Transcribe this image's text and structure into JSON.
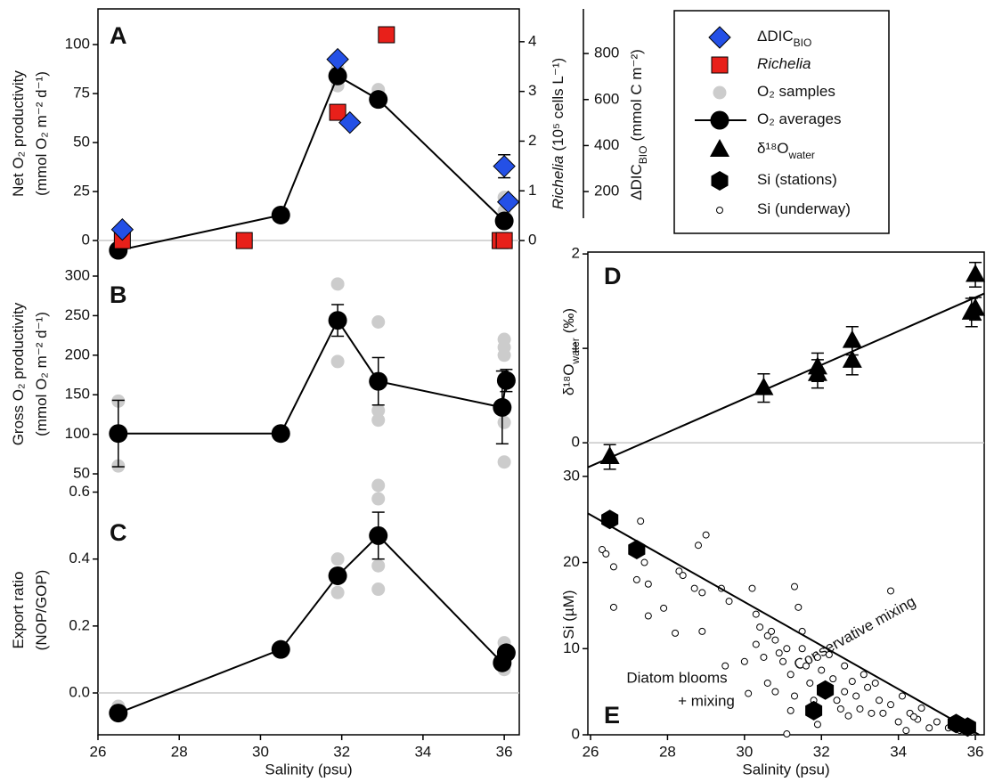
{
  "chart_data": [
    {
      "type": "scatter",
      "panel_label": "A",
      "ylabel": [
        [
          "Net O₂ productivity"
        ],
        [
          "(mmol O₂ m⁻² d⁻¹)"
        ]
      ],
      "y2label": [
        [
          "Richelia",
          "(10⁵ cells L⁻¹)"
        ]
      ],
      "y3label": [
        [
          "ΔDIC",
          "BIO",
          "(mmol C m⁻²)"
        ]
      ],
      "xlim": [
        26,
        36.37
      ],
      "ylim": [
        -12.7,
        118.2
      ],
      "yticks": [
        0,
        25,
        50,
        75,
        100
      ],
      "y2lim": [
        -0.5,
        4.66
      ],
      "y2ticks": [
        0,
        1,
        2,
        3,
        4
      ],
      "y3lim": [
        -121,
        994
      ],
      "y3ticks": [
        200,
        400,
        600,
        800
      ],
      "zero_line": true,
      "series": [
        {
          "name": "ΔDIC",
          "name_sub": "BIO",
          "marker": "diamond",
          "color": "#2450e6",
          "axis": "y3",
          "x": [
            26.6,
            31.9,
            32.2,
            36.0,
            36.1
          ],
          "values": [
            35,
            775,
            500,
            310,
            155
          ],
          "errors": [
            null,
            null,
            null,
            50,
            null
          ]
        },
        {
          "name": "Richelia",
          "marker": "square",
          "color": "#e8201a",
          "axis": "y2",
          "x": [
            26.6,
            29.6,
            31.9,
            33.1,
            35.9,
            36.0
          ],
          "values": [
            0,
            0,
            2.58,
            4.14,
            0,
            0
          ]
        },
        {
          "name": "O₂ samples",
          "marker": "circle",
          "color": "#cccccc",
          "x": [
            31.9,
            31.9,
            32.9,
            32.9,
            36.0,
            36.0
          ],
          "values": [
            79,
            88,
            77,
            72,
            22,
            15
          ]
        },
        {
          "name": "O₂ averages",
          "marker": "dot",
          "color": "#000000",
          "line": true,
          "x": [
            26.5,
            30.5,
            31.9,
            32.9,
            36.0
          ],
          "values": [
            -5,
            13,
            84,
            72,
            10
          ]
        }
      ]
    },
    {
      "type": "scatter",
      "panel_label": "B",
      "ylabel": [
        [
          "Gross O₂ productivity"
        ],
        [
          "(mmol O₂ m⁻² d⁻¹)"
        ]
      ],
      "xlim": [
        26,
        36.37
      ],
      "ylim": [
        35.4,
        313.5
      ],
      "yticks": [
        50,
        100,
        150,
        200,
        250,
        300
      ],
      "series": [
        {
          "marker": "circle",
          "color": "#cccccc",
          "x": [
            26.5,
            26.5,
            31.9,
            31.9,
            32.9,
            32.9,
            32.9,
            36.0,
            36.0,
            36.0,
            36.0,
            36.0
          ],
          "values": [
            142,
            60,
            290,
            192,
            242,
            130,
            118,
            220,
            210,
            200,
            115,
            65
          ]
        },
        {
          "marker": "dot",
          "color": "#000000",
          "line": true,
          "x": [
            26.5,
            30.5,
            31.9,
            32.9,
            35.95,
            36.05
          ],
          "values": [
            101,
            101,
            244,
            167,
            134,
            168
          ],
          "errors": [
            42,
            null,
            20,
            30,
            46,
            14
          ]
        }
      ]
    },
    {
      "type": "scatter",
      "panel_label": "C",
      "ylabel": [
        [
          "Export ratio"
        ],
        [
          "(NOP/GOP)"
        ]
      ],
      "xlabel": "Salinity (psu)",
      "xlim": [
        26,
        36.37
      ],
      "xticks": [
        26,
        28,
        30,
        32,
        34,
        36
      ],
      "ylim": [
        -0.125,
        0.62
      ],
      "yticks": [
        {
          "value": 0,
          "label": "0.0"
        },
        0.2,
        0.4,
        0.6
      ],
      "zero_line": true,
      "series": [
        {
          "marker": "circle",
          "color": "#cccccc",
          "x": [
            26.5,
            31.9,
            31.9,
            32.9,
            32.9,
            32.9,
            32.9,
            36.0,
            36.0
          ],
          "values": [
            -0.04,
            0.4,
            0.3,
            0.62,
            0.58,
            0.38,
            0.31,
            0.15,
            0.07
          ]
        },
        {
          "marker": "dot",
          "color": "#000000",
          "line": true,
          "x": [
            26.5,
            30.5,
            31.9,
            32.9,
            35.95,
            36.05
          ],
          "values": [
            -0.06,
            0.13,
            0.35,
            0.47,
            0.09,
            0.12
          ],
          "errors": [
            null,
            null,
            null,
            0.07,
            null,
            null
          ]
        }
      ]
    },
    {
      "type": "scatter",
      "panel_label": "D",
      "ylabel": [
        [
          "δ¹⁸O",
          "water",
          "(‰)"
        ]
      ],
      "xlim": [
        25.93,
        36.23
      ],
      "ylim": [
        -0.31,
        2.02
      ],
      "yticks": [
        0,
        1,
        2
      ],
      "zero_line": true,
      "series": [
        {
          "name": "δ¹⁸O",
          "name_sub": "water",
          "marker": "triangle",
          "color": "#000000",
          "x": [
            26.5,
            30.5,
            31.9,
            31.9,
            32.8,
            32.8,
            35.9,
            36.0,
            36.0
          ],
          "values": [
            -0.15,
            0.58,
            0.8,
            0.73,
            0.87,
            1.08,
            1.38,
            1.42,
            1.78
          ],
          "errors": [
            0.13,
            0.15,
            0.15,
            0.15,
            0.15,
            0.15,
            0.15,
            0.12,
            0.13
          ]
        },
        {
          "marker": "none",
          "color": "#000000",
          "line": true,
          "x": [
            25.93,
            36.23
          ],
          "values": [
            -0.26,
            1.58
          ]
        }
      ]
    },
    {
      "type": "scatter",
      "panel_label": "E",
      "ylabel": [
        [
          "Si (µM)"
        ]
      ],
      "xlabel": "Salinity (psu)",
      "xlim": [
        25.93,
        36.23
      ],
      "xticks": [
        26,
        28,
        30,
        32,
        34,
        36
      ],
      "ylim": [
        0,
        30.5
      ],
      "yticks": [
        0,
        10,
        20,
        30
      ],
      "annotations": [
        "Conservative mixing",
        "Diatom blooms",
        "+ mixing"
      ],
      "series": [
        {
          "name": "Si (stations)",
          "marker": "hexagon",
          "color": "#000000",
          "x": [
            26.5,
            27.2,
            31.8,
            32.1,
            35.5,
            35.8
          ],
          "values": [
            25,
            21.5,
            2.8,
            5.2,
            1.3,
            0.9
          ]
        },
        {
          "name": "Si (underway)",
          "marker": "ring",
          "color": "#000000",
          "x": [
            26.3,
            26.4,
            26.6,
            26.6,
            27.3,
            27.2,
            27.5,
            27.4,
            27.5,
            27.9,
            28.2,
            28.3,
            28.4,
            28.7,
            28.8,
            28.9,
            29.0,
            28.9,
            29.4,
            29.6,
            29.5,
            30.2,
            30.3,
            30.4,
            30.3,
            30.5,
            30.6,
            30.7,
            30.8,
            30.9,
            30.6,
            30.8,
            31.0,
            31.1,
            31.2,
            31.3,
            31.4,
            31.3,
            31.5,
            31.6,
            31.7,
            31.9,
            31.8,
            31.9,
            31.1,
            32.0,
            32.2,
            32.3,
            32.4,
            32.5,
            32.6,
            32.6,
            32.8,
            32.9,
            33.0,
            33.1,
            33.2,
            33.3,
            33.5,
            33.6,
            33.8,
            33.8,
            34.0,
            34.1,
            34.2,
            34.3,
            34.5,
            34.6,
            34.8,
            35.0,
            35.3,
            35.6,
            35.9,
            31.5,
            30.0,
            30.1,
            32.7,
            33.4,
            34.4,
            31.2
          ],
          "values": [
            21.5,
            21,
            19.5,
            14.8,
            24.8,
            18,
            17.5,
            20,
            13.8,
            14.7,
            11.8,
            19,
            18.5,
            17,
            22,
            16.5,
            23.2,
            12,
            17,
            15.5,
            8,
            17,
            14,
            12.5,
            10.5,
            9,
            11.5,
            12,
            11,
            9.5,
            6,
            5,
            8.5,
            10,
            7,
            17.2,
            14.8,
            4.5,
            10,
            8,
            6,
            9,
            4,
            1.2,
            0.1,
            7.5,
            9.3,
            6.5,
            4,
            3,
            8,
            5,
            6.2,
            4.5,
            3,
            7,
            5.5,
            2.5,
            4,
            2.5,
            16.7,
            3.5,
            1.5,
            4.5,
            0.5,
            2.5,
            1.8,
            3.1,
            0.8,
            1.5,
            0.8,
            0.5,
            0.3,
            12,
            8.5,
            4.8,
            2.2,
            6,
            2.1,
            2.8
          ]
        },
        {
          "marker": "none",
          "color": "#000000",
          "line": true,
          "x": [
            25.93,
            36.1
          ],
          "values": [
            25.7,
            0
          ]
        }
      ]
    }
  ]
}
